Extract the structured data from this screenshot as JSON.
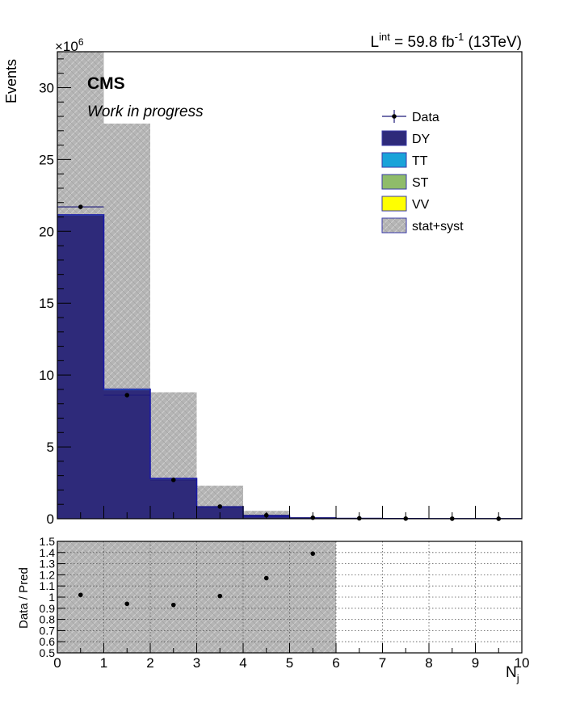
{
  "header": {
    "lumi": "L",
    "lumi_sup": "int",
    "lumi_value": " = 59.8 fb",
    "lumi_unit_sup": "-1",
    "lumi_energy": " (13TeV)",
    "cms": "CMS",
    "work": "Work in progress",
    "exponent_base": "×10",
    "exponent_power": "6"
  },
  "chart_data": [
    {
      "type": "bar",
      "stacked": true,
      "ylabel": "Events",
      "y_scale_factor": 1000000,
      "xlim": [
        0,
        10
      ],
      "ylim": [
        0,
        32.5
      ],
      "yticks": [
        0,
        5,
        10,
        15,
        20,
        25,
        30
      ],
      "xtick_labels": [],
      "bin_edges": [
        0,
        1,
        2,
        3,
        4,
        5,
        6,
        7,
        8,
        9,
        10
      ],
      "series": [
        {
          "name": "DY",
          "color": "#2e2a7a",
          "values": [
            21.1,
            8.95,
            2.75,
            0.8,
            0.17,
            0.045,
            0.02,
            0.01,
            0.005,
            0.003
          ]
        },
        {
          "name": "TT",
          "color": "#1aa3d9",
          "values": [
            0.03,
            0.05,
            0.04,
            0.02,
            0.01,
            0.005,
            0,
            0,
            0,
            0
          ]
        },
        {
          "name": "ST",
          "color": "#8fbc6a",
          "values": [
            0.005,
            0.005,
            0.005,
            0.003,
            0.001,
            0,
            0,
            0,
            0,
            0
          ]
        },
        {
          "name": "VV",
          "color": "#ffff00",
          "values": [
            0.01,
            0.01,
            0.005,
            0.003,
            0.001,
            0,
            0,
            0,
            0,
            0
          ]
        }
      ],
      "uncertainty": {
        "name": "stat+syst",
        "color": "#b5b5b5",
        "up": [
          32.5,
          27.5,
          8.8,
          2.3,
          0.55,
          0.1,
          0.05,
          0.02,
          0.01,
          0.01
        ],
        "down": [
          0,
          0,
          0,
          0,
          0,
          0,
          0,
          0,
          0,
          0
        ]
      },
      "data": {
        "name": "Data",
        "color": "#1e1b7a",
        "x": [
          0.5,
          1.5,
          2.5,
          3.5,
          4.5,
          5.5,
          6.5,
          7.5,
          8.5,
          9.5
        ],
        "y": [
          21.7,
          8.6,
          2.7,
          0.85,
          0.24,
          0.07,
          0.03,
          0.01,
          0.005,
          0.002
        ]
      },
      "legend": {
        "placement": "top-right",
        "entries": [
          "Data",
          "DY",
          "TT",
          "ST",
          "VV",
          "stat+syst"
        ]
      }
    },
    {
      "type": "scatter",
      "xlabel": "N",
      "xlabel_sub": "j",
      "ylabel": "Data / Pred",
      "xlim": [
        0,
        10
      ],
      "ylim": [
        0.5,
        1.5
      ],
      "xticks": [
        0,
        1,
        2,
        3,
        4,
        5,
        6,
        7,
        8,
        9,
        10
      ],
      "yticks": [
        0.5,
        0.6,
        0.7,
        0.8,
        0.9,
        1,
        1.1,
        1.2,
        1.3,
        1.4,
        1.5
      ],
      "ytick_labels": [
        "0.5",
        "0.6",
        "0.7",
        "0.8",
        "0.9",
        "1",
        "1.1",
        "1.2",
        "1.3",
        "1.4",
        "1.5"
      ],
      "grid": true,
      "band": {
        "x_range": [
          0,
          6
        ],
        "y_range": [
          0.5,
          1.5
        ]
      },
      "points": {
        "x": [
          0.5,
          1.5,
          2.5,
          3.5,
          4.5,
          5.5
        ],
        "y": [
          1.02,
          0.94,
          0.93,
          1.01,
          1.17,
          1.39
        ]
      }
    }
  ]
}
